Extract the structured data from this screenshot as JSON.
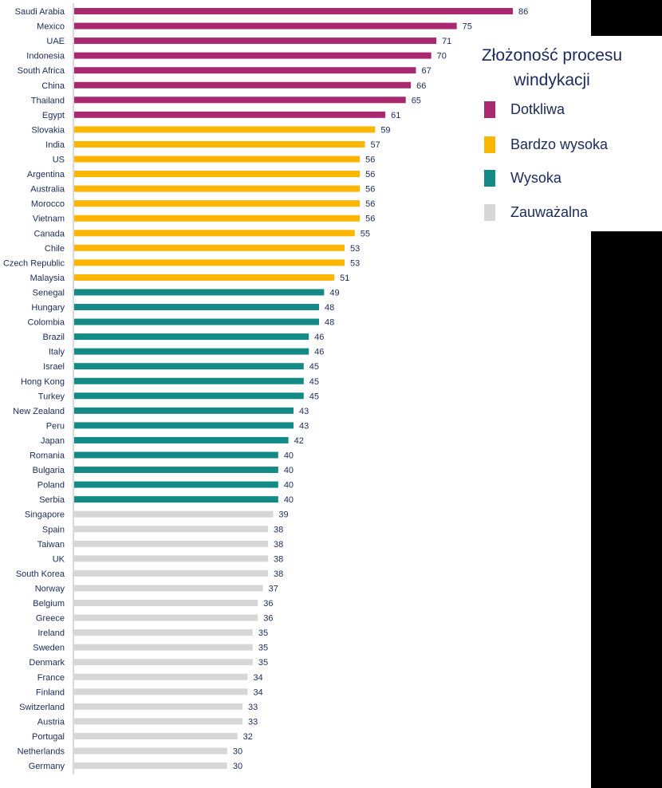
{
  "chart_data": {
    "type": "bar",
    "orientation": "horizontal",
    "categories": [
      "Saudi Arabia",
      "Mexico",
      "UAE",
      "Indonesia",
      "South Africa",
      "China",
      "Thailand",
      "Egypt",
      "Slovakia",
      "India",
      "US",
      "Argentina",
      "Australia",
      "Morocco",
      "Vietnam",
      "Canada",
      "Chile",
      "Czech Republic",
      "Malaysia",
      "Senegal",
      "Hungary",
      "Colombia",
      "Brazil",
      "Italy",
      "Israel",
      "Hong Kong",
      "Turkey",
      "New Zealand",
      "Peru",
      "Japan",
      "Romania",
      "Bulgaria",
      "Poland",
      "Serbia",
      "Singapore",
      "Spain",
      "Taiwan",
      "UK",
      "South Korea",
      "Norway",
      "Belgium",
      "Greece",
      "Ireland",
      "Sweden",
      "Denmark",
      "France",
      "Finland",
      "Switzerland",
      "Austria",
      "Portugal",
      "Netherlands",
      "Germany"
    ],
    "values": [
      86,
      75,
      71,
      70,
      67,
      66,
      65,
      61,
      59,
      57,
      56,
      56,
      56,
      56,
      56,
      55,
      53,
      53,
      51,
      49,
      48,
      48,
      46,
      46,
      45,
      45,
      45,
      43,
      43,
      42,
      40,
      40,
      40,
      40,
      39,
      38,
      38,
      38,
      38,
      37,
      36,
      36,
      35,
      35,
      35,
      34,
      34,
      33,
      33,
      32,
      30,
      30
    ],
    "groups": [
      "Dotkliwa",
      "Dotkliwa",
      "Dotkliwa",
      "Dotkliwa",
      "Dotkliwa",
      "Dotkliwa",
      "Dotkliwa",
      "Dotkliwa",
      "Bardzo wysoka",
      "Bardzo wysoka",
      "Bardzo wysoka",
      "Bardzo wysoka",
      "Bardzo wysoka",
      "Bardzo wysoka",
      "Bardzo wysoka",
      "Bardzo wysoka",
      "Bardzo wysoka",
      "Bardzo wysoka",
      "Bardzo wysoka",
      "Wysoka",
      "Wysoka",
      "Wysoka",
      "Wysoka",
      "Wysoka",
      "Wysoka",
      "Wysoka",
      "Wysoka",
      "Wysoka",
      "Wysoka",
      "Wysoka",
      "Wysoka",
      "Wysoka",
      "Wysoka",
      "Wysoka",
      "Zauważalna",
      "Zauważalna",
      "Zauważalna",
      "Zauważalna",
      "Zauważalna",
      "Zauważalna",
      "Zauważalna",
      "Zauważalna",
      "Zauważalna",
      "Zauważalna",
      "Zauważalna",
      "Zauważalna",
      "Zauważalna",
      "Zauważalna",
      "Zauważalna",
      "Zauważalna",
      "Zauważalna",
      "Zauważalna"
    ],
    "xlim": [
      0,
      86
    ],
    "grid": false,
    "legend": {
      "title": "Złożoność procesu windykacji",
      "placement": "top-right",
      "entries": [
        {
          "label": "Dotkliwa",
          "color": "#a8296f"
        },
        {
          "label": "Bardzo wysoka",
          "color": "#fab600"
        },
        {
          "label": "Wysoka",
          "color": "#138a85"
        },
        {
          "label": "Zauważalna",
          "color": "#d6d6d6"
        }
      ]
    }
  },
  "colors": {
    "text": "#1b2a5a",
    "axis": "#b3b3b3",
    "background": "#ffffff"
  }
}
